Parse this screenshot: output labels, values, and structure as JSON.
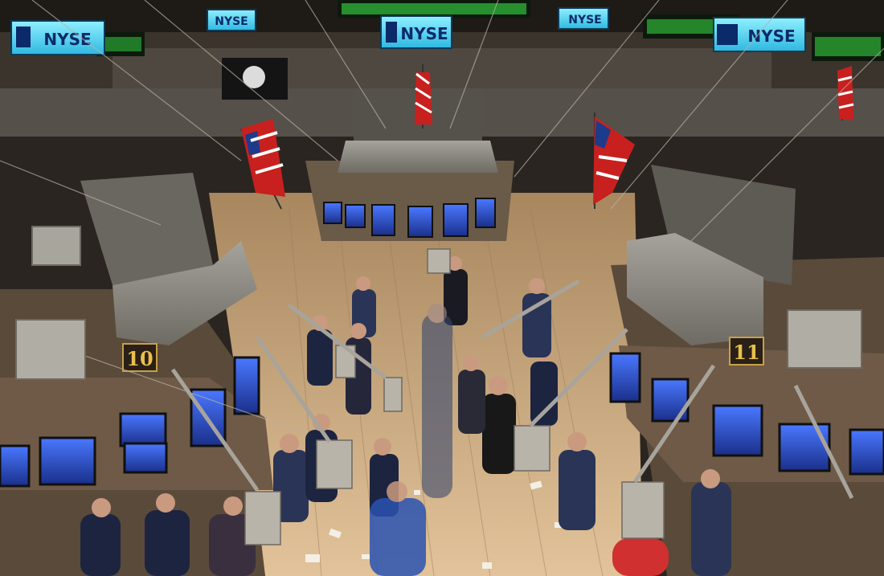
{
  "signs": {
    "nyse_text": "NYSE"
  },
  "posts": {
    "left_number": "10",
    "right_number": "11"
  },
  "colors": {
    "sign_blue": "#4fd0f0",
    "floor": "#c9a47a",
    "booth_gray": "#8e8c86",
    "screen": "#2a4fd0",
    "ticker_green": "#3cf04a",
    "suit": "#1c2440"
  }
}
